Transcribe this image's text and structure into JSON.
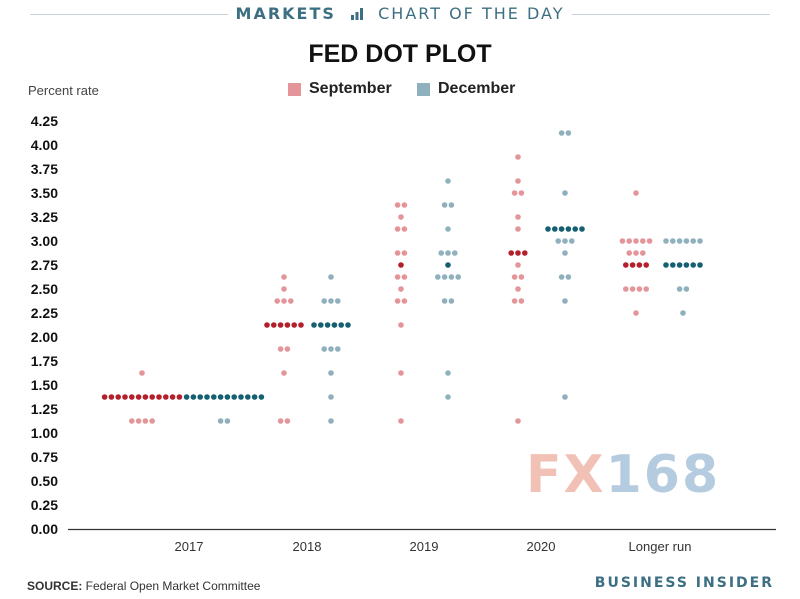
{
  "header": {
    "markets": "MARKETS",
    "chart_of_the_day": "CHART OF THE DAY"
  },
  "footer": {
    "source_label": "SOURCE:",
    "source_text": " Federal Open Market Committee",
    "publisher": "BUSINESS INSIDER"
  },
  "watermark": {
    "fx": "FX",
    "num": "168"
  },
  "colors": {
    "sep_light": "#e3959a",
    "sep_dark": "#b41f2c",
    "dec_light": "#8fb0bd",
    "dec_dark": "#145f72",
    "axis_line": "#333333",
    "brand": "#3d6f83"
  },
  "chart_data": {
    "type": "scatter",
    "title": "FED DOT PLOT",
    "ylabel": "Percent rate",
    "xlabel": "",
    "ylim": [
      0,
      4.25
    ],
    "yticks": [
      0.0,
      0.25,
      0.5,
      0.75,
      1.0,
      1.25,
      1.5,
      1.75,
      2.0,
      2.25,
      2.5,
      2.75,
      3.0,
      3.25,
      3.5,
      3.75,
      4.0,
      4.25
    ],
    "categories": [
      "2017",
      "2018",
      "2019",
      "2020",
      "Longer run"
    ],
    "legend": [
      "September",
      "December"
    ],
    "series": [
      {
        "name": "September",
        "dots": [
          [
            [
              1.625,
              1
            ],
            [
              1.375,
              12
            ],
            [
              1.125,
              4
            ]
          ],
          [
            [
              2.625,
              1
            ],
            [
              2.375,
              3
            ],
            [
              2.5,
              1
            ],
            [
              2.125,
              6
            ],
            [
              1.875,
              2
            ],
            [
              1.625,
              1
            ],
            [
              1.125,
              2
            ]
          ],
          [
            [
              3.375,
              2
            ],
            [
              3.25,
              1
            ],
            [
              3.125,
              2
            ],
            [
              2.875,
              2
            ],
            [
              2.75,
              1
            ],
            [
              2.625,
              2
            ],
            [
              2.5,
              1
            ],
            [
              2.375,
              2
            ],
            [
              2.125,
              1
            ],
            [
              1.625,
              1
            ],
            [
              1.125,
              1
            ]
          ],
          [
            [
              3.875,
              1
            ],
            [
              3.625,
              1
            ],
            [
              3.5,
              2
            ],
            [
              3.25,
              1
            ],
            [
              3.125,
              1
            ],
            [
              2.875,
              3
            ],
            [
              2.75,
              1
            ],
            [
              2.625,
              2
            ],
            [
              2.5,
              1
            ],
            [
              2.375,
              2
            ],
            [
              1.125,
              1
            ]
          ],
          [
            [
              3.5,
              1
            ],
            [
              3.0,
              5
            ],
            [
              2.875,
              3
            ],
            [
              2.75,
              4
            ],
            [
              2.5,
              4
            ],
            [
              2.25,
              1
            ]
          ]
        ]
      },
      {
        "name": "December",
        "dots": [
          [
            [
              1.375,
              12
            ],
            [
              1.125,
              2
            ]
          ],
          [
            [
              2.625,
              1
            ],
            [
              2.375,
              3
            ],
            [
              2.125,
              6
            ],
            [
              1.875,
              3
            ],
            [
              1.625,
              1
            ],
            [
              1.375,
              1
            ],
            [
              1.125,
              1
            ]
          ],
          [
            [
              3.625,
              1
            ],
            [
              3.375,
              2
            ],
            [
              3.125,
              1
            ],
            [
              2.875,
              3
            ],
            [
              2.75,
              1
            ],
            [
              2.625,
              4
            ],
            [
              2.375,
              2
            ],
            [
              1.625,
              1
            ],
            [
              1.375,
              1
            ]
          ],
          [
            [
              4.125,
              2
            ],
            [
              3.5,
              1
            ],
            [
              3.125,
              6
            ],
            [
              3.0,
              3
            ],
            [
              2.875,
              1
            ],
            [
              2.625,
              2
            ],
            [
              2.375,
              1
            ],
            [
              1.375,
              1
            ]
          ],
          [
            [
              3.0,
              6
            ],
            [
              2.75,
              6
            ],
            [
              2.5,
              2
            ],
            [
              2.25,
              1
            ]
          ]
        ]
      }
    ],
    "median": {
      "September": [
        1.375,
        2.125,
        2.75,
        2.875,
        2.75
      ],
      "December": [
        1.375,
        2.125,
        2.75,
        3.125,
        2.75
      ]
    }
  }
}
